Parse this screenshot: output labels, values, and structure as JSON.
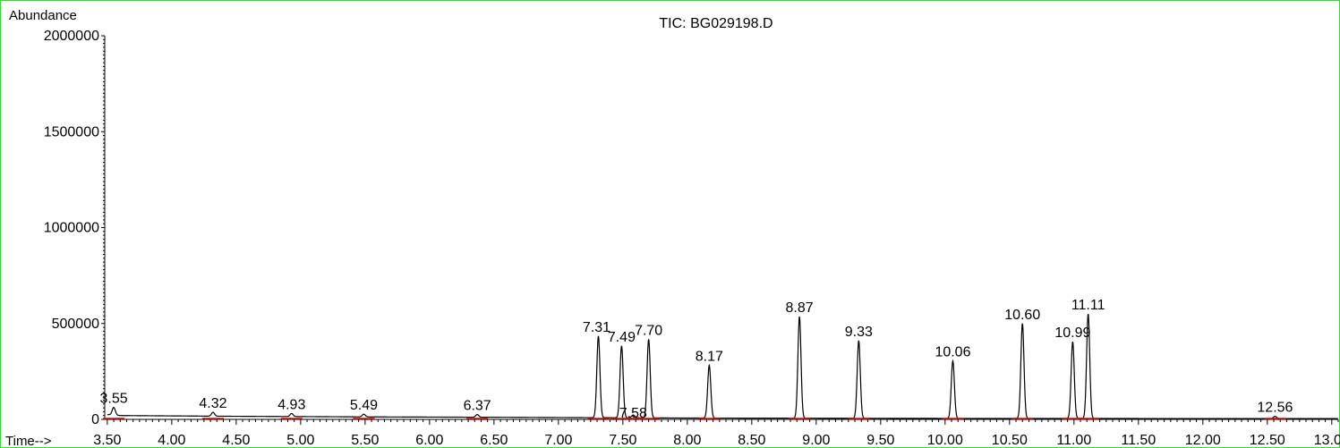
{
  "chart_data": {
    "type": "line",
    "title": "TIC: BG029198.D",
    "ylabel": "Abundance",
    "xlabel": "Time-->",
    "xlim": [
      3.48,
      13.05
    ],
    "ylim": [
      0,
      2000000
    ],
    "x_ticks": [
      "3.50",
      "4.00",
      "4.50",
      "5.00",
      "5.50",
      "6.00",
      "6.50",
      "7.00",
      "7.50",
      "8.00",
      "8.50",
      "9.00",
      "9.50",
      "10.00",
      "10.50",
      "11.00",
      "11.50",
      "12.00",
      "12.50",
      "13.00"
    ],
    "y_ticks": [
      "0",
      "500000",
      "1000000",
      "1500000",
      "2000000"
    ],
    "baseline": [
      [
        3.5,
        25000
      ],
      [
        3.6,
        20000
      ],
      [
        4.5,
        16000
      ],
      [
        5.5,
        13000
      ],
      [
        6.5,
        11000
      ],
      [
        7.25,
        9000
      ],
      [
        8.0,
        7000
      ],
      [
        9.0,
        6000
      ],
      [
        10.0,
        5000
      ],
      [
        11.0,
        5000
      ],
      [
        12.0,
        4000
      ],
      [
        13.05,
        4000
      ]
    ],
    "peaks": [
      {
        "rt": 3.55,
        "label": "3.55",
        "height": 40000
      },
      {
        "rt": 4.32,
        "label": "4.32",
        "height": 20000
      },
      {
        "rt": 4.93,
        "label": "4.93",
        "height": 16000
      },
      {
        "rt": 5.49,
        "label": "5.49",
        "height": 14000
      },
      {
        "rt": 6.37,
        "label": "6.37",
        "height": 14000
      },
      {
        "rt": 7.31,
        "label": "7.31",
        "height": 425000
      },
      {
        "rt": 7.49,
        "label": "7.49",
        "height": 375000
      },
      {
        "rt": 7.58,
        "label": "7.58",
        "height": 15000
      },
      {
        "rt": 7.7,
        "label": "7.70",
        "height": 410000
      },
      {
        "rt": 8.17,
        "label": "8.17",
        "height": 275000
      },
      {
        "rt": 8.87,
        "label": "8.87",
        "height": 530000
      },
      {
        "rt": 9.33,
        "label": "9.33",
        "height": 405000
      },
      {
        "rt": 10.06,
        "label": "10.06",
        "height": 300000
      },
      {
        "rt": 10.6,
        "label": "10.60",
        "height": 495000
      },
      {
        "rt": 10.99,
        "label": "10.99",
        "height": 400000
      },
      {
        "rt": 11.11,
        "label": "11.11",
        "height": 545000
      },
      {
        "rt": 12.56,
        "label": "12.56",
        "height": 12000
      }
    ],
    "colors": {
      "trace": "#000000",
      "integration_marks": "#ff0000",
      "frame": "#33dd33"
    }
  }
}
